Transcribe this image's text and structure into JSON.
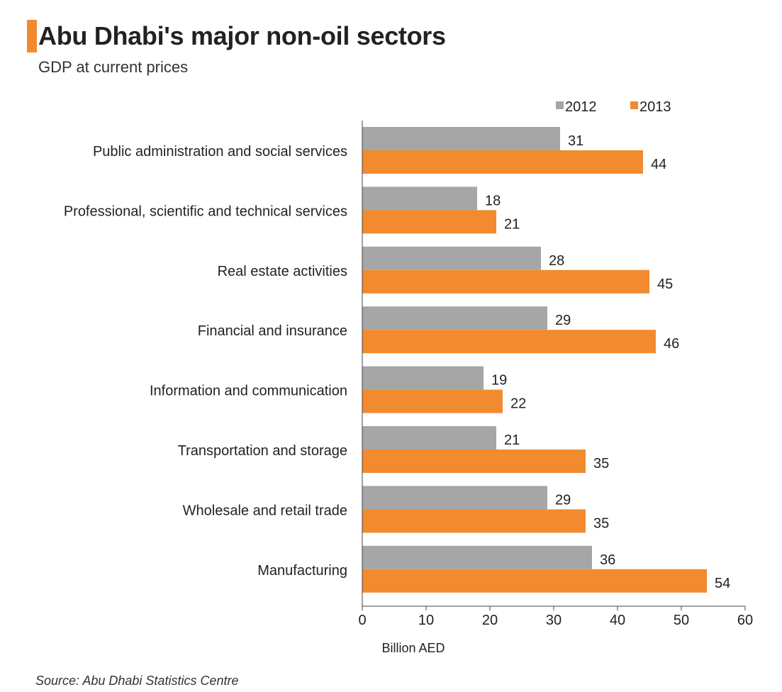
{
  "title": "Abu Dhabi's major non-oil sectors",
  "subtitle": "GDP at current prices",
  "source": "Source: Abu Dhabi Statistics Centre",
  "colors": {
    "accent": "#f28a30",
    "series_2012": "#a6a6a6",
    "series_2013": "#f28a30",
    "axis": "#444444"
  },
  "chart_data": {
    "type": "bar",
    "orientation": "horizontal",
    "categories": [
      "Public administration and social services",
      "Professional, scientific and technical services",
      "Real estate activities",
      "Financial and insurance",
      "Information and communication",
      "Transportation and storage",
      "Wholesale and retail trade",
      "Manufacturing"
    ],
    "series": [
      {
        "name": "2012",
        "values": [
          31,
          18,
          28,
          29,
          19,
          21,
          29,
          36
        ]
      },
      {
        "name": "2013",
        "values": [
          44,
          21,
          45,
          46,
          22,
          35,
          35,
          54
        ]
      }
    ],
    "xlabel": "Billion AED",
    "xlim": [
      0,
      60
    ],
    "xticks": [
      0,
      10,
      20,
      30,
      40,
      50,
      60
    ],
    "data_labels": true,
    "grid": false,
    "legend_position": "top-right"
  }
}
